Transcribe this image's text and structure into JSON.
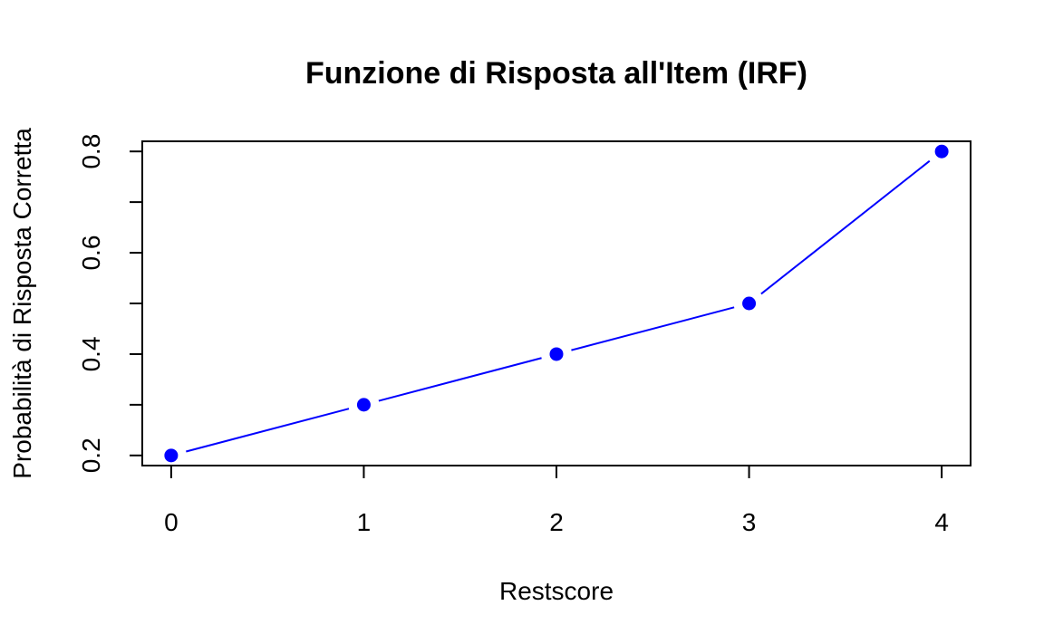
{
  "chart_data": {
    "type": "line",
    "title": "Funzione di Risposta all'Item (IRF)",
    "xlabel": "Restscore",
    "ylabel": "Probabilità di Risposta Corretta",
    "x": [
      0,
      1,
      2,
      3,
      4
    ],
    "series": [
      {
        "values": [
          0.2,
          0.3,
          0.4,
          0.5,
          0.8
        ],
        "color": "#0000ff",
        "line": true,
        "markers": "filled-circle"
      }
    ],
    "xlim": [
      -0.15,
      4.15
    ],
    "ylim": [
      0.18,
      0.82
    ],
    "xticks": [
      0,
      1,
      2,
      3,
      4
    ],
    "xtick_labels": [
      "0",
      "1",
      "2",
      "3",
      "4"
    ],
    "yticks": [
      0.2,
      0.3,
      0.4,
      0.5,
      0.6,
      0.7,
      0.8
    ],
    "ytick_labels": [
      "0.2",
      "",
      "0.4",
      "",
      "0.6",
      "",
      "0.8"
    ],
    "grid": false,
    "legend": "none"
  }
}
